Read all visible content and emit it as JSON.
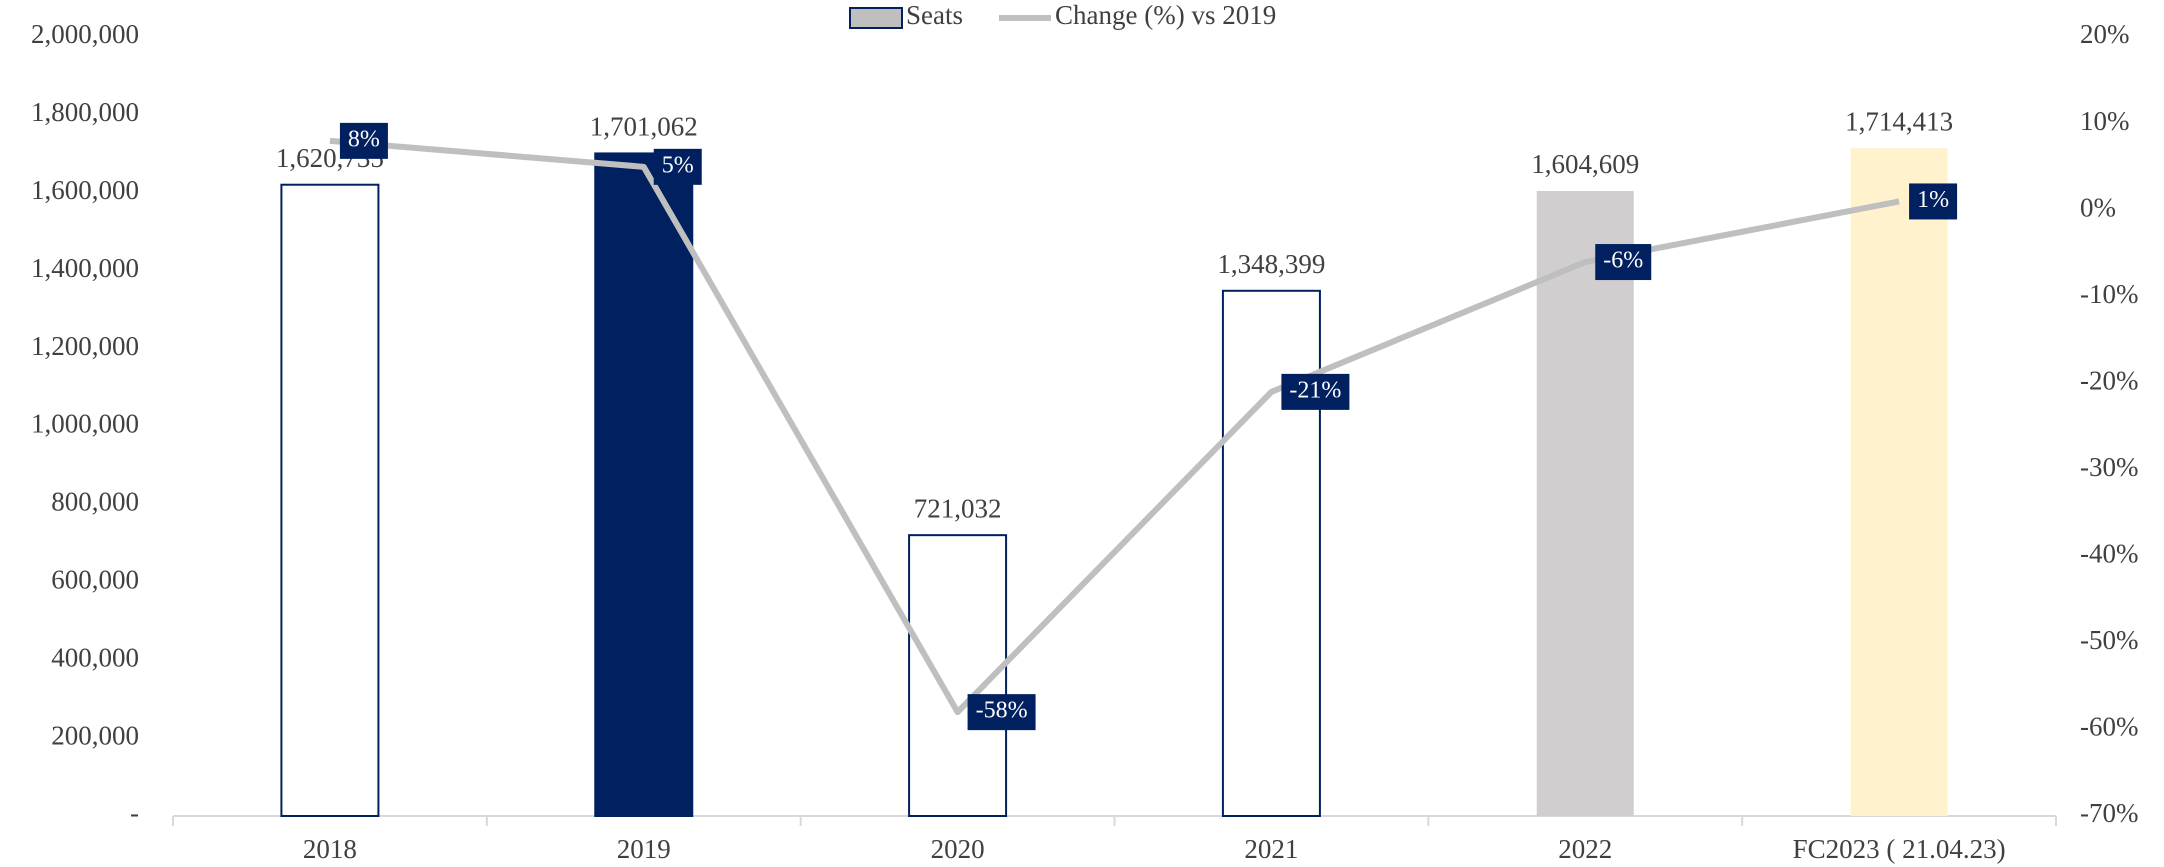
{
  "chart_data": {
    "type": "bar_line",
    "categories": [
      "2018",
      "2019",
      "2020",
      "2021",
      "2022",
      "FC2023 ( 21.04.23)"
    ],
    "series": [
      {
        "name": "Seats",
        "type": "bar",
        "color": "#bfbfbf",
        "edgecolor": "#002060",
        "colors": [
          "#ffffff",
          "#002060",
          "#ffffff",
          "#ffffff",
          "#d0cece",
          "#fff2cc"
        ],
        "edgecolors": [
          "#002060",
          "#002060",
          "#002060",
          "#002060",
          "none",
          "none"
        ],
        "values": [
          1620735,
          1701062,
          721032,
          1348399,
          1604609,
          1714413
        ],
        "value_labels": [
          "1,620,735",
          "1,701,062",
          "721,032",
          "1,348,399",
          "1,604,609",
          "1,714,413"
        ]
      },
      {
        "name": "Change (%) vs 2019",
        "type": "line",
        "axis": "y2",
        "color": "#bfbfbf",
        "label_color": "#002060",
        "values": [
          8,
          5,
          -58,
          -21,
          -6,
          1
        ],
        "value_labels": [
          "8%",
          "5%",
          "-58%",
          "-21%",
          "-6%",
          "1%"
        ]
      }
    ],
    "ylim": [
      0,
      2000000
    ],
    "yticks": [
      {
        "value": 0,
        "label": "-"
      },
      {
        "value": 200000,
        "label": "200,000"
      },
      {
        "value": 400000,
        "label": "400,000"
      },
      {
        "value": 600000,
        "label": "600,000"
      },
      {
        "value": 800000,
        "label": "800,000"
      },
      {
        "value": 1000000,
        "label": "1,000,000"
      },
      {
        "value": 1200000,
        "label": "1,200,000"
      },
      {
        "value": 1400000,
        "label": "1,400,000"
      },
      {
        "value": 1600000,
        "label": "1,600,000"
      },
      {
        "value": 1800000,
        "label": "1,800,000"
      },
      {
        "value": 2000000,
        "label": "2,000,000"
      }
    ],
    "y2lim": [
      -70,
      20
    ],
    "y2ticks": [
      {
        "value": -70,
        "label": "-70%"
      },
      {
        "value": -60,
        "label": "-60%"
      },
      {
        "value": -50,
        "label": "-50%"
      },
      {
        "value": -40,
        "label": "-40%"
      },
      {
        "value": -30,
        "label": "-30%"
      },
      {
        "value": -20,
        "label": "-20%"
      },
      {
        "value": -10,
        "label": "-10%"
      },
      {
        "value": 0,
        "label": "0%"
      },
      {
        "value": 10,
        "label": "10%"
      },
      {
        "value": 20,
        "label": "20%"
      }
    ],
    "legend": "top"
  }
}
